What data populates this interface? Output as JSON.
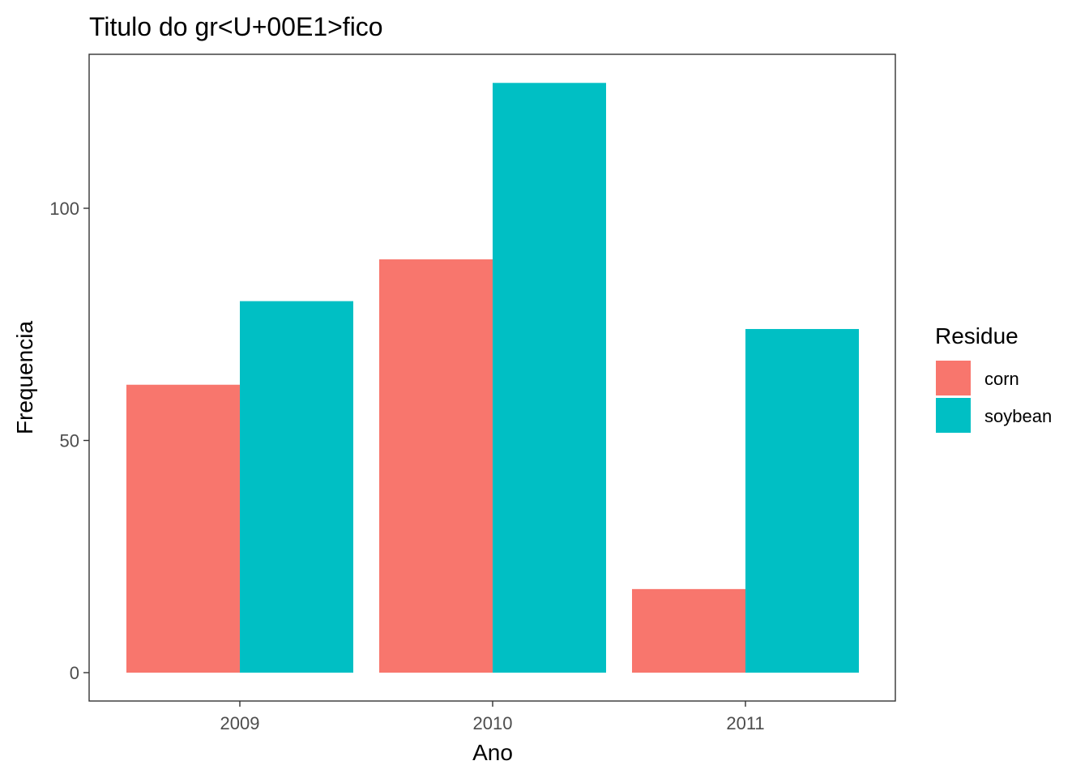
{
  "chart_data": {
    "type": "bar",
    "title": "Titulo do gr<U+00E1>fico",
    "xlabel": "Ano",
    "ylabel": "Frequencia",
    "categories": [
      "2009",
      "2010",
      "2011"
    ],
    "series": [
      {
        "name": "corn",
        "color": "#F8766D",
        "values": [
          62,
          89,
          18
        ]
      },
      {
        "name": "soybean",
        "color": "#00BFC4",
        "values": [
          80,
          127,
          74
        ]
      }
    ],
    "ylim": [
      -6,
      133.5
    ],
    "yticks": [
      0,
      50,
      100
    ],
    "legend": {
      "title": "Residue",
      "position": "right"
    },
    "grid": false
  }
}
